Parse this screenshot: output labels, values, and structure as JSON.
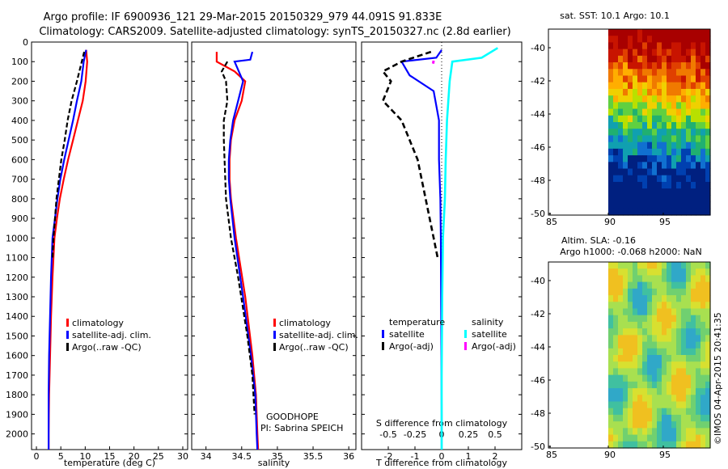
{
  "header": {
    "line1": "Argo profile: IF 6900936_121 29-Mar-2015 20150329_979 44.091S 91.833E",
    "line2": "Climatology: CARS2009. Satellite-adjusted climatology: synTS_20150327.nc (2.8d earlier)"
  },
  "colors": {
    "clim": "#ff0000",
    "sat": "#0000ff",
    "argo": "#000000",
    "sat_sal": "#00ffff",
    "argo_sal": "#ff00ff"
  },
  "chart_data": [
    {
      "type": "line",
      "id": "temperature",
      "xlabel": "temperature (deg C)",
      "ylabel": "",
      "xlim": [
        -1,
        31
      ],
      "ylim": [
        2080,
        0
      ],
      "xticks": [
        "0",
        "5",
        "10",
        "15",
        "20",
        "25",
        "30"
      ],
      "yticks": [
        "0",
        "100",
        "200",
        "300",
        "400",
        "500",
        "600",
        "700",
        "800",
        "900",
        "1000",
        "1100",
        "1200",
        "1300",
        "1400",
        "1500",
        "1600",
        "1700",
        "1800",
        "1900",
        "2000"
      ],
      "series": [
        {
          "name": "climatology",
          "x": [
            10.2,
            10.4,
            10.1,
            9.5,
            8.5,
            7.5,
            6.5,
            5.6,
            4.8,
            4.2,
            3.7,
            3.3,
            3.0,
            2.8,
            2.6,
            2.5,
            2.5
          ],
          "y": [
            40,
            100,
            200,
            300,
            400,
            500,
            600,
            700,
            800,
            900,
            1000,
            1200,
            1400,
            1600,
            1800,
            2000,
            2080
          ]
        },
        {
          "name": "satellite-adj. clim.",
          "x": [
            10.2,
            9.7,
            9.2,
            8.3,
            7.5,
            6.6,
            5.7,
            4.9,
            4.3,
            3.8,
            3.3,
            3.0,
            2.8,
            2.6,
            2.5,
            2.5
          ],
          "y": [
            40,
            100,
            200,
            300,
            400,
            500,
            600,
            700,
            800,
            900,
            1000,
            1200,
            1400,
            1600,
            1800,
            2080
          ]
        },
        {
          "name": "Argo(..raw -QC)",
          "x": [
            9.8,
            9.3,
            8.3,
            7.2,
            6.4,
            5.8,
            5.1,
            4.6,
            4.1,
            3.8,
            3.5,
            3.3
          ],
          "y": [
            50,
            100,
            200,
            300,
            400,
            500,
            600,
            700,
            800,
            900,
            1000,
            1100
          ]
        }
      ],
      "legend": [
        "climatology",
        "satellite-adj. clim.",
        "Argo(..raw -QC)"
      ]
    },
    {
      "type": "line",
      "id": "salinity",
      "xlabel": "salinity",
      "xlim": [
        33.8,
        36.1
      ],
      "xticks": [
        "34",
        "34.5",
        "35",
        "35.5",
        "36"
      ],
      "series": [
        {
          "name": "climatology",
          "x": [
            34.15,
            34.15,
            34.4,
            34.55,
            34.5,
            34.4,
            34.35,
            34.33,
            34.33,
            34.35,
            34.42,
            34.55,
            34.65,
            34.7,
            34.72,
            34.73
          ],
          "y": [
            50,
            100,
            150,
            200,
            300,
            400,
            500,
            600,
            700,
            800,
            1000,
            1300,
            1600,
            1800,
            2000,
            2080
          ]
        },
        {
          "name": "satellite-adj. clim.",
          "x": [
            34.65,
            34.62,
            34.4,
            34.52,
            34.45,
            34.38,
            34.34,
            34.32,
            34.32,
            34.34,
            34.4,
            34.52,
            34.63,
            34.69,
            34.71,
            34.72
          ],
          "y": [
            50,
            90,
            100,
            200,
            300,
            400,
            500,
            600,
            700,
            800,
            1000,
            1300,
            1600,
            1800,
            2000,
            2080
          ]
        },
        {
          "name": "Argo(..raw -QC)",
          "x": [
            34.3,
            34.22,
            34.28,
            34.3,
            34.25,
            34.25,
            34.26,
            34.28,
            34.35,
            34.45,
            34.58,
            34.65,
            34.68
          ],
          "y": [
            100,
            150,
            200,
            300,
            400,
            500,
            600,
            800,
            1000,
            1200,
            1500,
            1700,
            1900
          ]
        }
      ],
      "legend": [
        "climatology",
        "satellite-adj. clim.",
        "Argo(..raw -QC)"
      ],
      "annotation_line1": "GOODHOPE",
      "annotation_line2": "PI: Sabrina SPEICH"
    },
    {
      "type": "line",
      "id": "difference",
      "xlabel_bottom": "T difference from climatology",
      "xlabel_top": "S difference from climatology",
      "xlim": [
        -3.0,
        3.0
      ],
      "xticks": [
        "-2",
        "-1",
        "0",
        "1",
        "2"
      ],
      "xticks_top": [
        "-0.5",
        "-0.25",
        "0",
        "0.25",
        "0.5"
      ],
      "series": [
        {
          "name": "temperature satellite",
          "x": [
            0,
            -0.2,
            -1.5,
            -1.2,
            -0.3,
            -0.1,
            -0.1,
            -0.05,
            -0.03,
            -0.02,
            -0.01,
            0,
            0
          ],
          "y": [
            40,
            80,
            100,
            170,
            250,
            400,
            600,
            800,
            1000,
            1300,
            1600,
            1900,
            2080
          ]
        },
        {
          "name": "temperature Argo(-adj)",
          "x": [
            -0.4,
            -1.5,
            -2.2,
            -1.9,
            -2.2,
            -1.5,
            -0.9,
            -0.6,
            -0.3,
            -0.15
          ],
          "y": [
            50,
            100,
            150,
            200,
            300,
            400,
            600,
            800,
            1000,
            1100
          ]
        },
        {
          "name": "salinity satellite",
          "x": [
            2.1,
            1.5,
            0.4,
            0.3,
            0.2,
            0.15,
            0.12,
            0.05,
            0.02,
            0,
            0
          ],
          "y": [
            30,
            80,
            100,
            200,
            400,
            600,
            800,
            1000,
            1300,
            1700,
            2080
          ]
        },
        {
          "name": "salinity Argo(-adj)",
          "x": [
            -0.3,
            -0.32
          ],
          "y": [
            95,
            110
          ]
        }
      ],
      "legend_temp_title": "temperature",
      "legend_sal_title": "salinity",
      "legend_temp": [
        "satellite",
        "Argo(-adj)"
      ],
      "legend_sal": [
        "satellite",
        "Argo(-adj)"
      ]
    }
  ],
  "maps": {
    "top_title": "sat. SST: 10.1  Argo: 10.1",
    "bottom_title_line1": "Altim. SLA: -0.16",
    "bottom_title_line2": "Argo h1000: -0.068 h2000: NaN",
    "yticks": [
      "-40",
      "-42",
      "-44",
      "-46",
      "-48",
      "-50"
    ],
    "xticks": [
      "85",
      "90",
      "95"
    ],
    "credit": "©IMOS 04-Apr-2015 20:41:35"
  }
}
